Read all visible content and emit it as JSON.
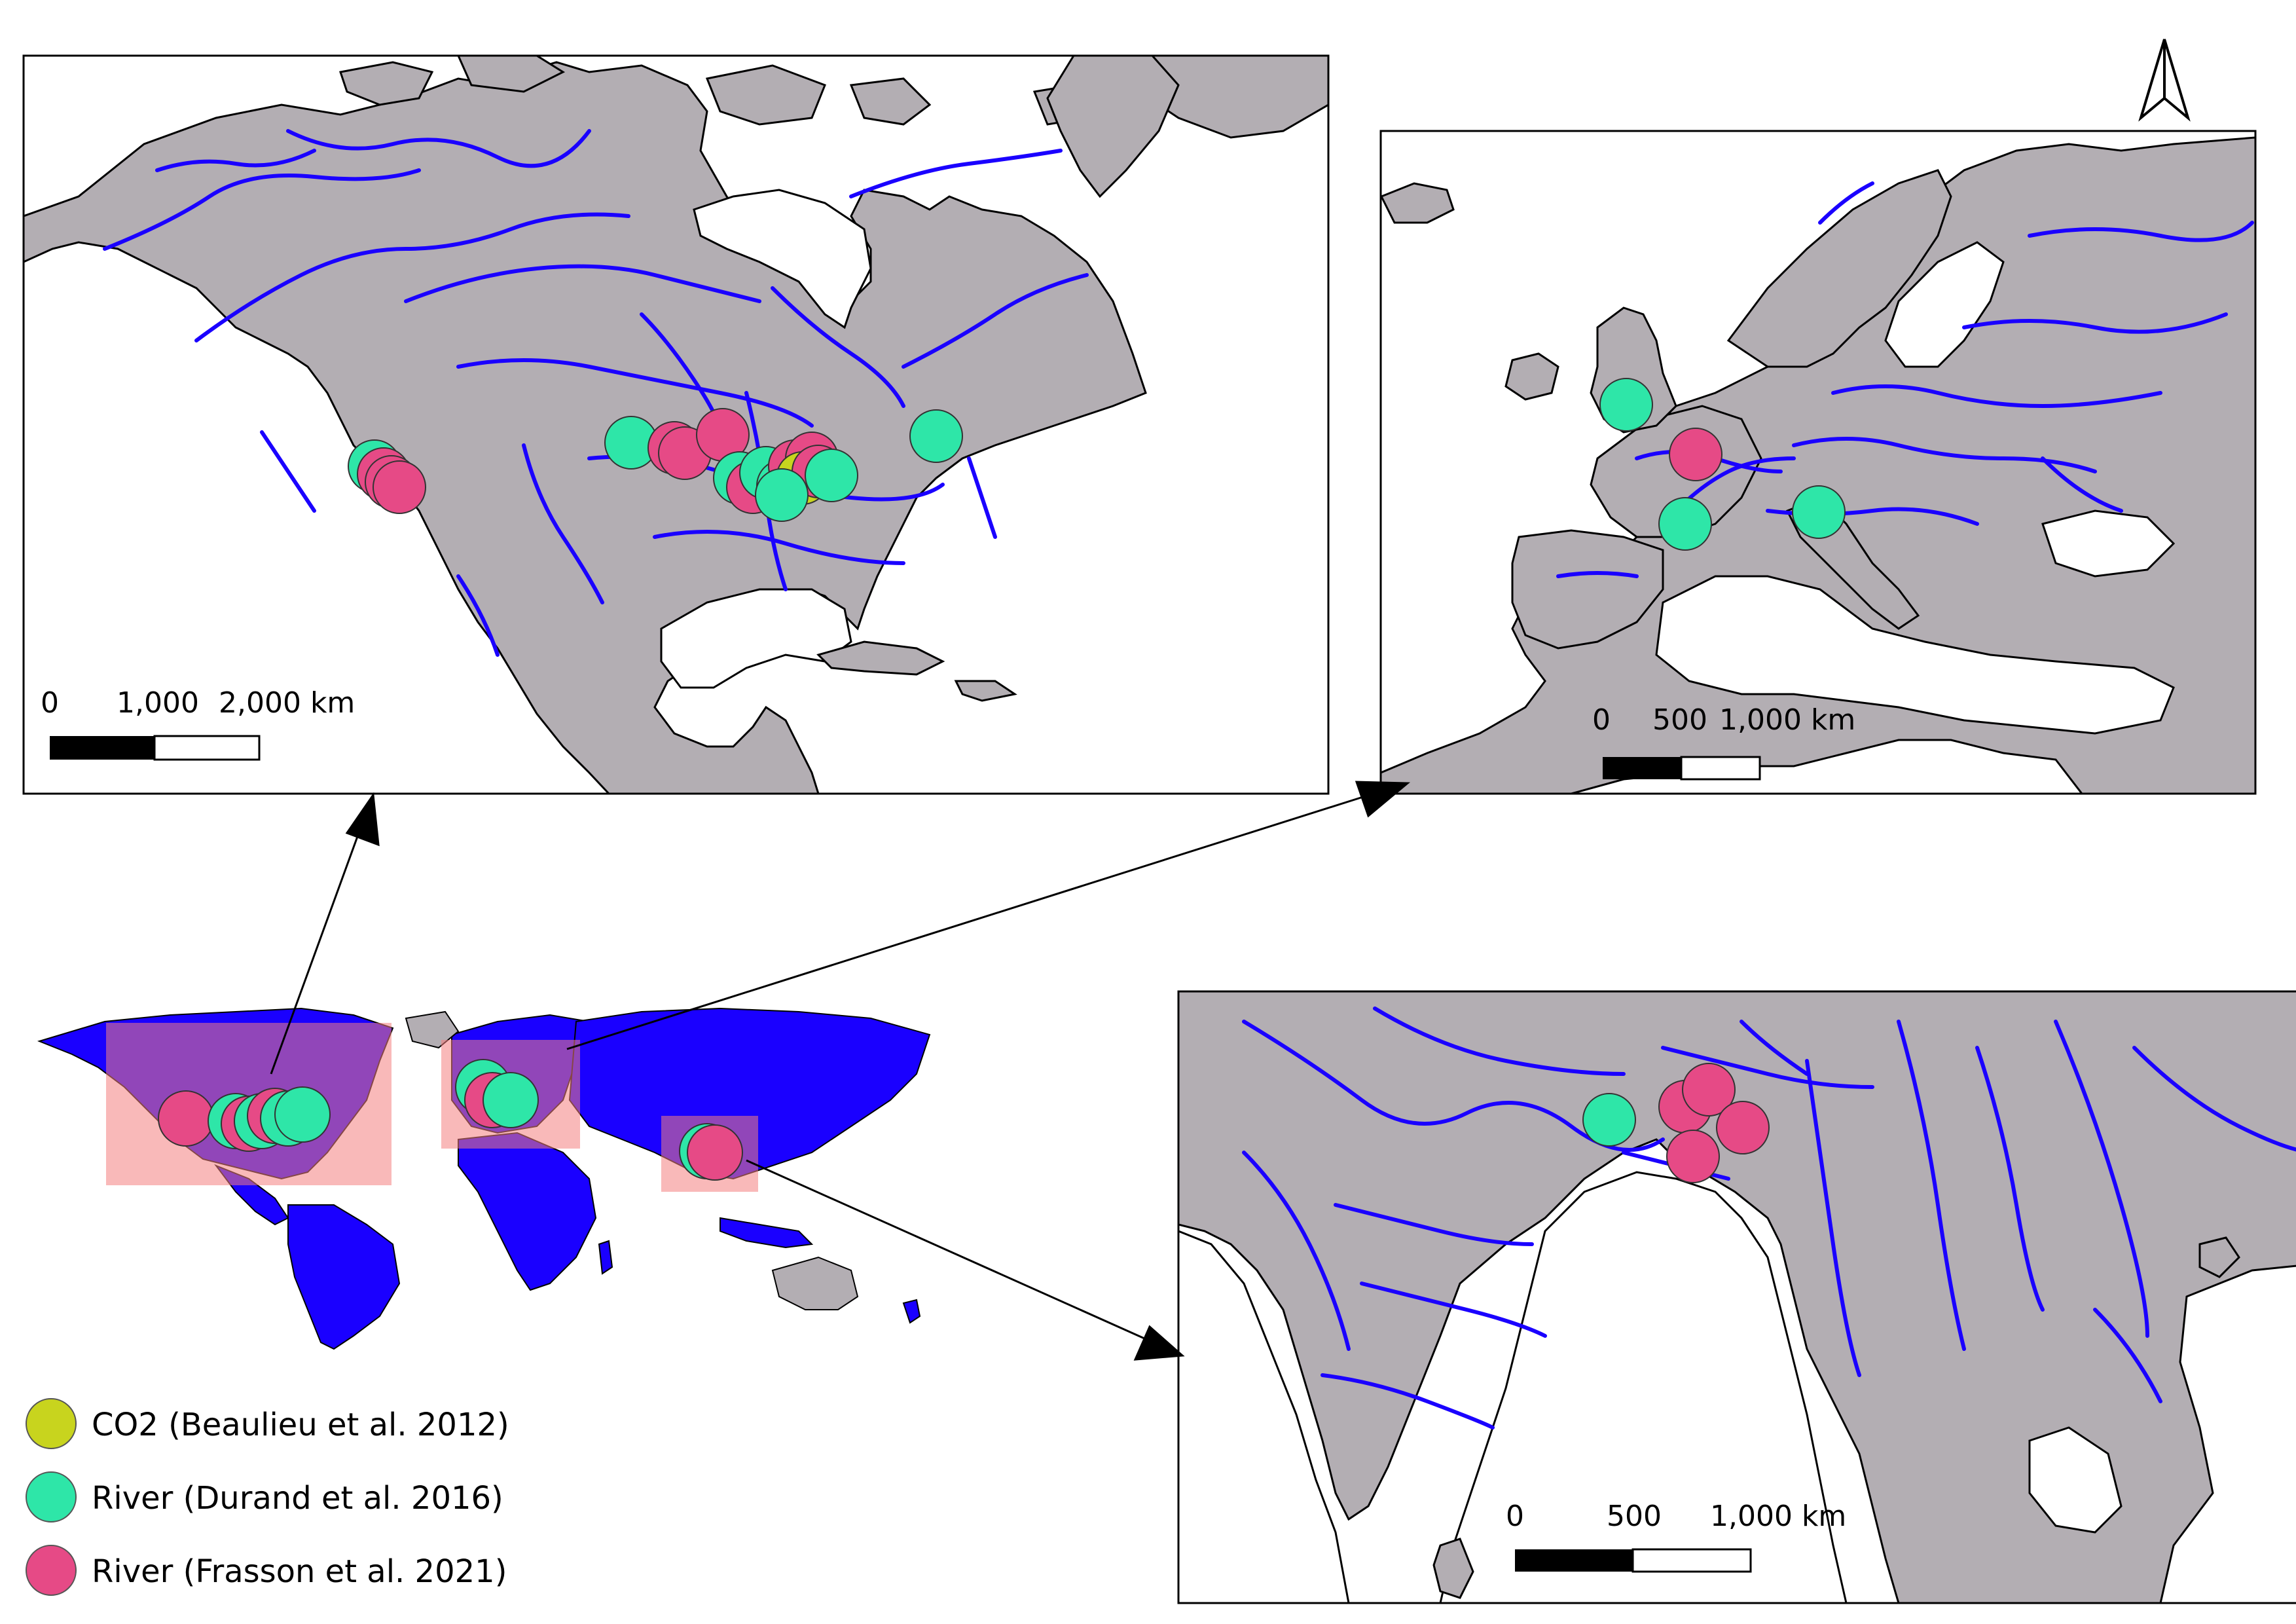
{
  "colors": {
    "land": "#b3aeb3",
    "water": "#ffffff",
    "river": "#1a00ff",
    "coast": "#000000",
    "extent_box": "#f48080",
    "co2": "#c8d41e",
    "durand": "#2ee6a8",
    "frasson": "#e64a86"
  },
  "north_arrow": {
    "icon": "north-arrow-icon"
  },
  "legend": [
    {
      "label": "CO2 (Beaulieu et al. 2012)",
      "color_key": "co2"
    },
    {
      "label": "River (Durand et al. 2016)",
      "color_key": "durand"
    },
    {
      "label": "River (Frasson et al. 2021)",
      "color_key": "frasson"
    }
  ],
  "maps": {
    "north_america": {
      "scale_labels": [
        "0",
        "1,000",
        "2,000 km"
      ]
    },
    "europe": {
      "scale_labels": [
        "0",
        "500",
        "1,000 km"
      ]
    },
    "south_asia": {
      "scale_labels": [
        "0",
        "500",
        "1,000 km"
      ]
    }
  }
}
